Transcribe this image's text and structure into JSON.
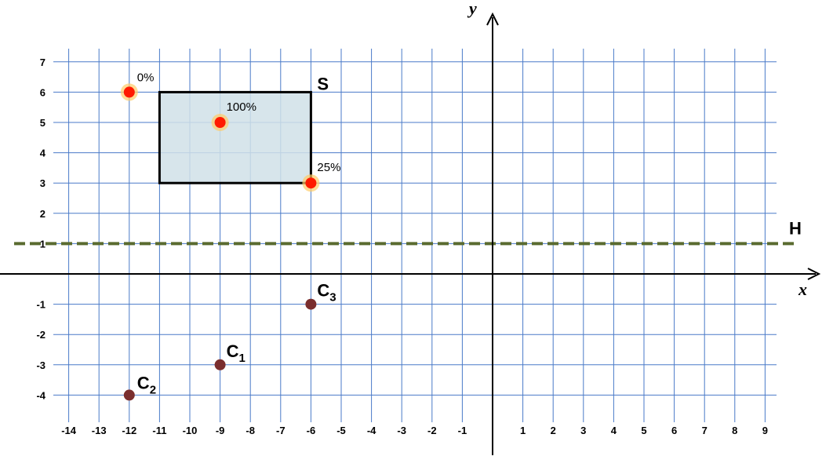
{
  "axes": {
    "x_label": "x",
    "y_label": "y",
    "x_ticks": [
      "-14",
      "-13",
      "-12",
      "-11",
      "-10",
      "-9",
      "-8",
      "-7",
      "-6",
      "-5",
      "-4",
      "-3",
      "-2",
      "-1",
      "1",
      "2",
      "3",
      "4",
      "5",
      "6",
      "7",
      "8",
      "9"
    ],
    "y_ticks": [
      "7",
      "6",
      "5",
      "4",
      "3",
      "2",
      "1",
      "-1",
      "-2",
      "-3",
      "-4"
    ]
  },
  "chart_data": {
    "type": "scatter",
    "xlim": [
      -14,
      9
    ],
    "ylim": [
      -4,
      7
    ],
    "grid": true,
    "rectangle": {
      "label": "S",
      "x_min": -11,
      "x_max": -6,
      "y_min": 3,
      "y_max": 6,
      "fill": "#d0e0e8",
      "stroke": "#000000"
    },
    "line": {
      "label": "H",
      "y": 1,
      "color": "#5a6b30",
      "style": "dashed"
    },
    "probability_points": [
      {
        "label": "0%",
        "x": -12,
        "y": 6
      },
      {
        "label": "100%",
        "x": -9,
        "y": 5
      },
      {
        "label": "25%",
        "x": -6,
        "y": 3
      }
    ],
    "center_points": [
      {
        "label": "C",
        "sub": "1",
        "x": -9,
        "y": -3
      },
      {
        "label": "C",
        "sub": "2",
        "x": -12,
        "y": -4
      },
      {
        "label": "C",
        "sub": "3",
        "x": -6,
        "y": -1
      }
    ]
  },
  "colors": {
    "grid": "#4a7ac8",
    "point_red": "#ff1a00",
    "point_glow": "#ffcc66",
    "center_point": "#7a2e2e",
    "axis": "#000000"
  }
}
